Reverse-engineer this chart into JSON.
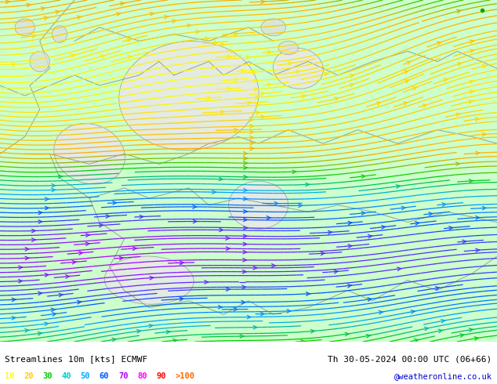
{
  "title_left": "Streamlines 10m [kts] ECMWF",
  "title_right": "Th 30-05-2024 00:00 UTC (06+66)",
  "credit": "@weatheronline.co.uk",
  "legend_values": [
    "10",
    "20",
    "30",
    "40",
    "50",
    "60",
    "70",
    "80",
    "90",
    ">100"
  ],
  "legend_colors": [
    "#ffff00",
    "#ffcc00",
    "#00cc00",
    "#00cccc",
    "#00aaff",
    "#0055ff",
    "#aa00ff",
    "#ff00ff",
    "#ff0000",
    "#ff6600"
  ],
  "bg_color": "#aaddaa",
  "land_color": "#ccffcc",
  "calm_color": "#e8e8e8",
  "streamline_color_low": "#ffff00",
  "streamline_color_mid": "#ffaa00",
  "streamline_color_high": "#00cc00",
  "border_color": "#888888",
  "text_color": "#000000",
  "figsize": [
    6.34,
    4.9
  ],
  "dpi": 100
}
